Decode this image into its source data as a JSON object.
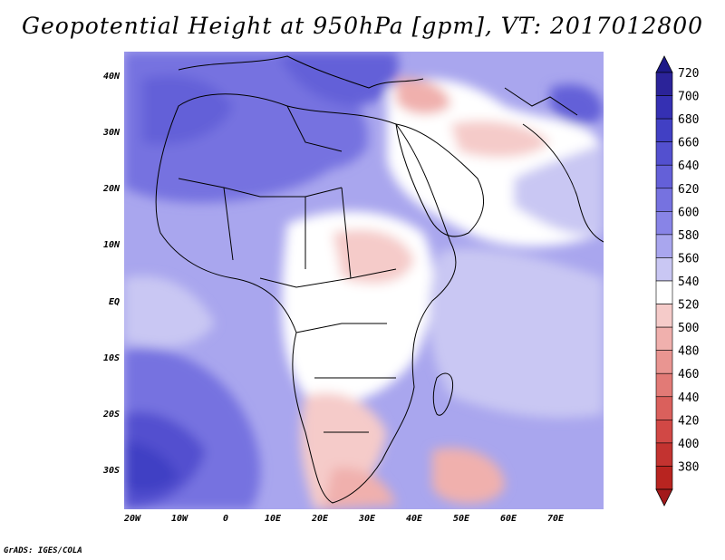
{
  "title": "Geopotential Height at 950hPa [gpm], VT: 2017012800",
  "footer": "GrADS: IGES/COLA",
  "latitude_labels": [
    "40N",
    "30N",
    "20N",
    "10N",
    "EQ",
    "10S",
    "20S",
    "30S"
  ],
  "longitude_labels": [
    "20W",
    "10W",
    "0",
    "10E",
    "20E",
    "30E",
    "40E",
    "50E",
    "60E",
    "70E"
  ],
  "legend": {
    "values": [
      "720",
      "700",
      "680",
      "660",
      "640",
      "620",
      "600",
      "580",
      "560",
      "540",
      "520",
      "500",
      "480",
      "460",
      "440",
      "420",
      "400",
      "380"
    ],
    "colors": [
      "#2b2399",
      "#3530b3",
      "#4140c4",
      "#5350cf",
      "#6460d8",
      "#7672e0",
      "#8884e7",
      "#a9a6ee",
      "#c9c7f3",
      "#ffffff",
      "#f5cbc9",
      "#f0b0ad",
      "#e99591",
      "#e27a76",
      "#da605c",
      "#d14845",
      "#c33330",
      "#b82420"
    ],
    "top_arrow_color": "#1e1a88",
    "bottom_arrow_color": "#a3191b"
  }
}
